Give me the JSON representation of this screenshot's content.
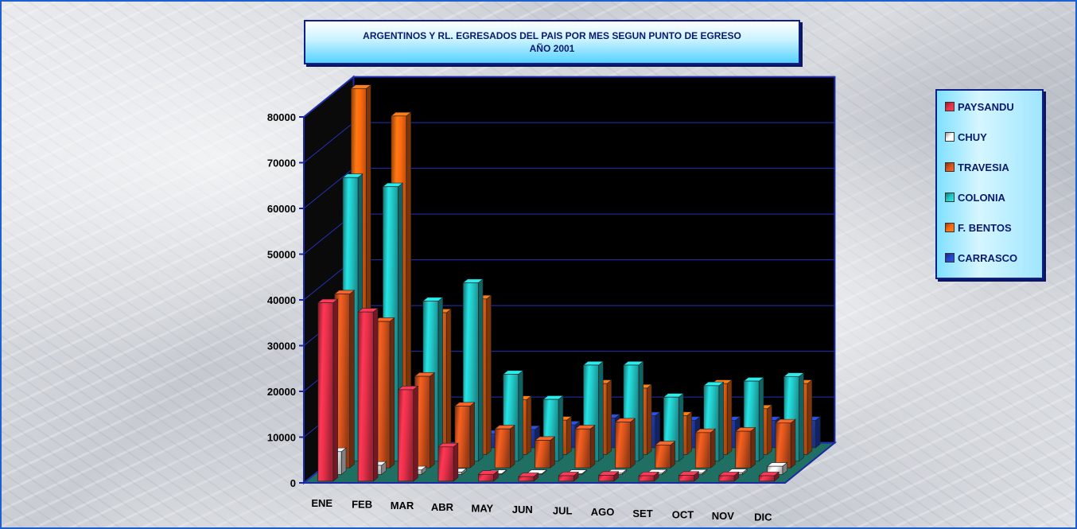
{
  "chart_data": {
    "type": "bar",
    "title": "ARGENTINOS Y RL. EGRESADOS DEL PAIS POR MES SEGUN PUNTO DE EGRESO",
    "subtitle": "AÑO 2001",
    "categories": [
      "ENE",
      "FEB",
      "MAR",
      "ABR",
      "MAY",
      "JUN",
      "JUL",
      "AGO",
      "SET",
      "OCT",
      "NOV",
      "DIC"
    ],
    "ylim": [
      0,
      80000
    ],
    "yticks": [
      "0",
      "10000",
      "20000",
      "30000",
      "40000",
      "50000",
      "60000",
      "70000",
      "80000"
    ],
    "legend_position": "right",
    "grid": true,
    "series": [
      {
        "name": "PAYSANDU",
        "color": "#e8304a",
        "values": [
          39000,
          37000,
          20000,
          7500,
          1500,
          1000,
          1200,
          1300,
          1200,
          1300,
          1200,
          1200
        ]
      },
      {
        "name": "CHUY",
        "color": "#ffffff",
        "values": [
          5000,
          2000,
          1000,
          500,
          200,
          200,
          200,
          300,
          300,
          300,
          400,
          1800
        ]
      },
      {
        "name": "TRAVESIA",
        "color": "#d8541c",
        "values": [
          38000,
          32000,
          20000,
          13500,
          8500,
          6000,
          8500,
          10000,
          5000,
          7700,
          8000,
          9800
        ]
      },
      {
        "name": "COLONIA",
        "color": "#22c6c6",
        "values": [
          62000,
          60000,
          35000,
          39000,
          19000,
          13500,
          21000,
          21000,
          14000,
          16500,
          17500,
          18500
        ]
      },
      {
        "name": "F. BENTOS",
        "color": "#ff6a10",
        "values": [
          80000,
          74000,
          31000,
          34000,
          12000,
          7500,
          15500,
          14500,
          8500,
          15500,
          10000,
          15500
        ]
      },
      {
        "name": "CARRASCO",
        "color": "#2244cc",
        "values": [
          0,
          0,
          0,
          3000,
          4000,
          5000,
          6500,
          7000,
          6000,
          6000,
          6000,
          6000
        ]
      }
    ]
  }
}
